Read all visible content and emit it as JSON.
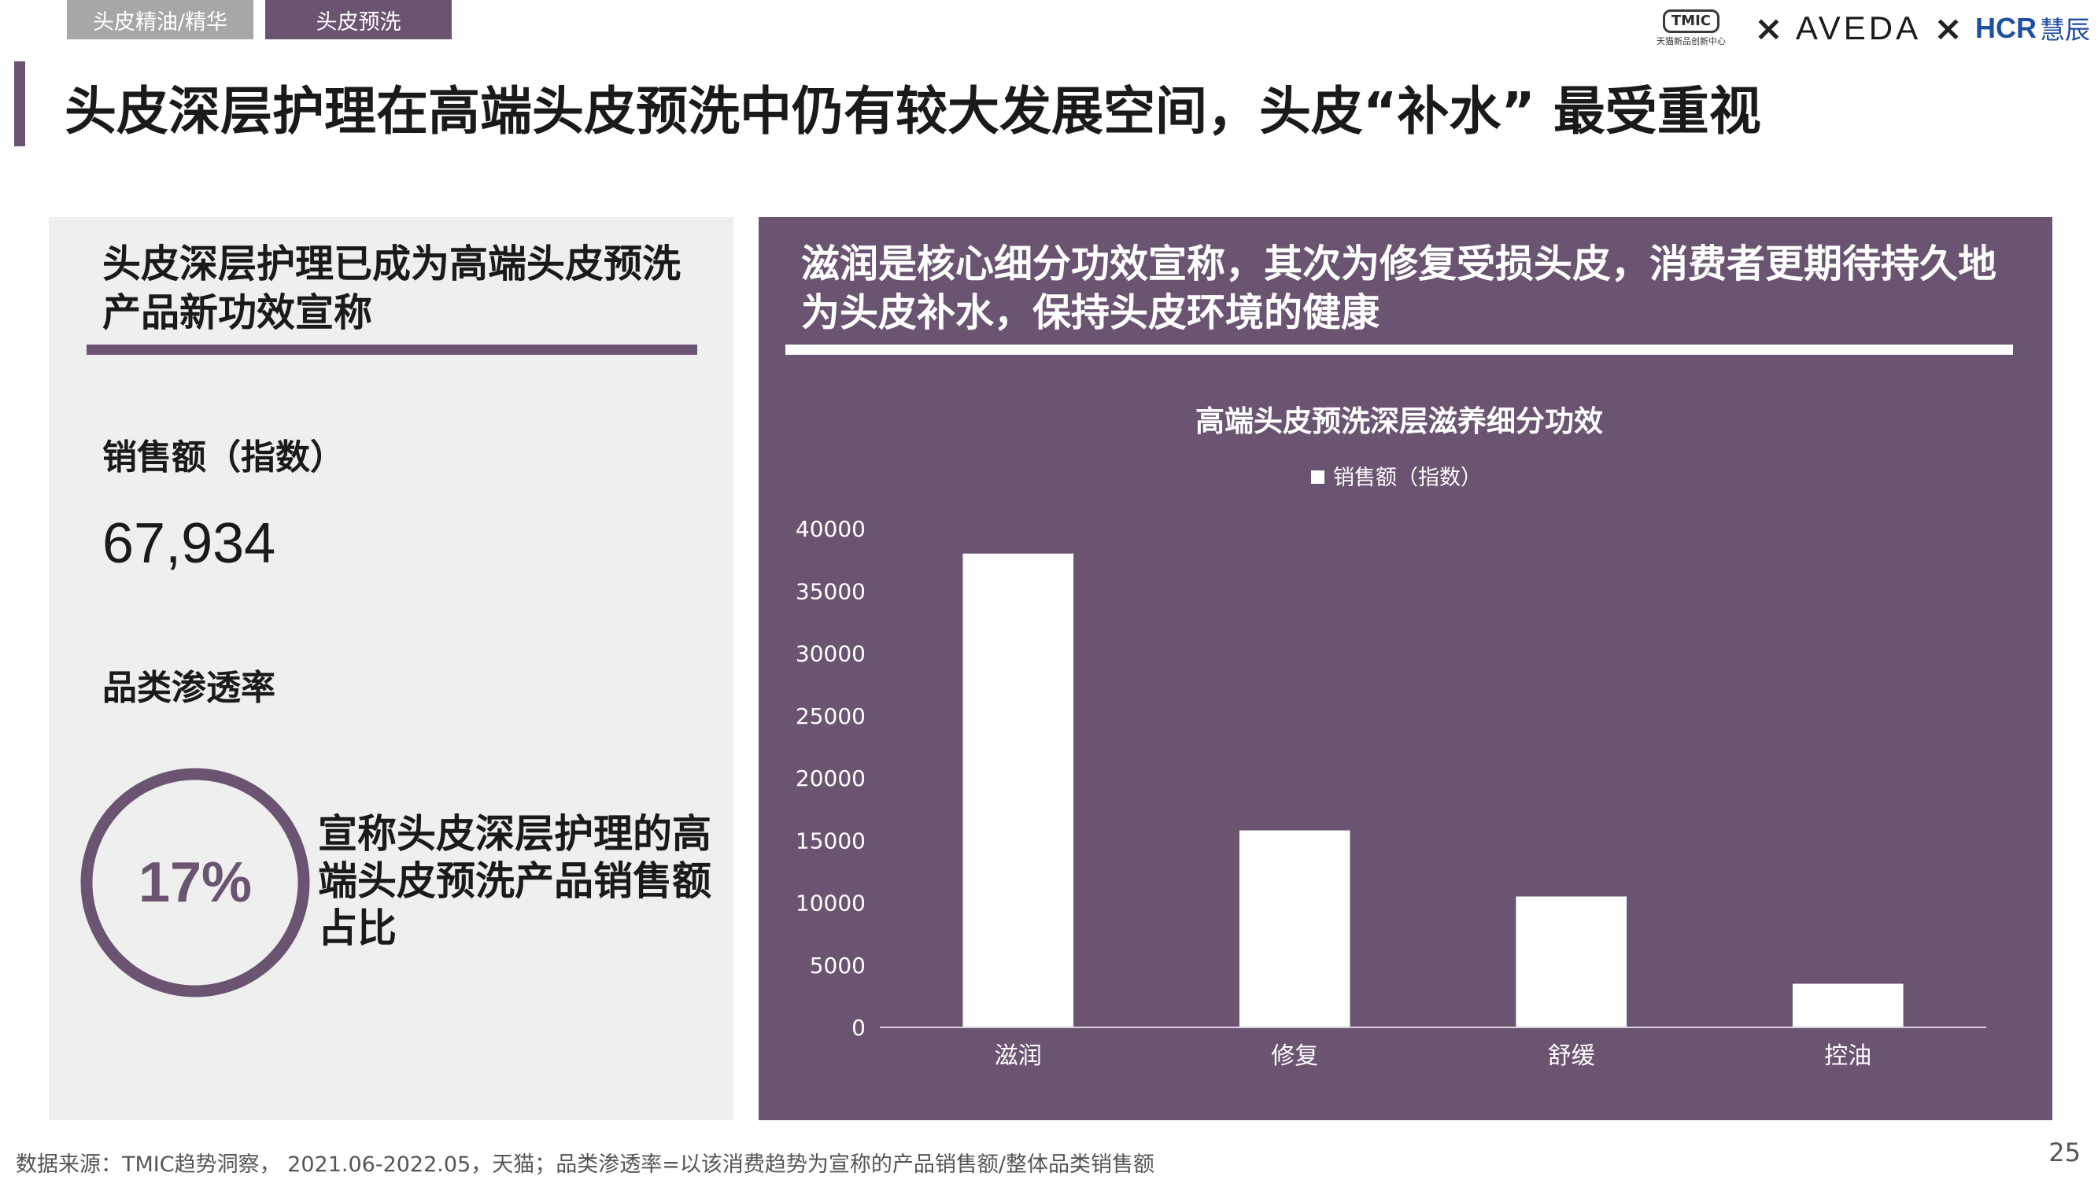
{
  "tabs": [
    "头皮精油/精华",
    "头皮预洗"
  ],
  "logos": {
    "tmic": "TMIC",
    "tmic_sub": "天猫新品创新中心",
    "separator": "×",
    "aveda": "AVEDA",
    "hcr": "HCR",
    "hcr_cn": "慧辰"
  },
  "headline": "头皮深层护理在高端头皮预洗中仍有较大发展空间，头皮“补水” 最受重视",
  "left": {
    "title": "头皮深层护理已成为高端头皮预洗产品新功效宣称",
    "sales_label": "销售额（指数）",
    "sales_value": "67,934",
    "penetration_label": "品类渗透率",
    "penetration_value": "17%",
    "penetration_fraction": 0.17,
    "penetration_desc": "宣称头皮深层护理的高端头皮预洗产品销售额占比"
  },
  "right": {
    "title": "滋润是核心细分功效宣称，其次为修复受损头皮，消费者更期待持久地为头皮补水，保持头皮环境的健康"
  },
  "chart_data": {
    "type": "bar",
    "title": "高端头皮预洗深层滋养细分功效",
    "categories": [
      "滋润",
      "修复",
      "舒缓",
      "控油"
    ],
    "series": [
      {
        "name": "销售额（指数）",
        "values": [
          38000,
          15800,
          10500,
          3500
        ]
      }
    ],
    "ylim": [
      0,
      40000
    ],
    "yticks": [
      0,
      5000,
      10000,
      15000,
      20000,
      25000,
      30000,
      35000,
      40000
    ],
    "legend_position": "top-center",
    "grid": false,
    "colors": {
      "bar": "#ffffff",
      "background": "#6b5472",
      "text": "#ffffff"
    }
  },
  "footer": {
    "source": "数据来源：TMIC趋势洞察， 2021.06-2022.05，天猫；品类渗透率=以该消费趋势为宣称的产品销售额/整体品类销售额",
    "page": "25"
  },
  "colors": {
    "accent": "#6b5472",
    "panel_gray": "#efefef",
    "tab_gray": "#a7a7a7"
  }
}
